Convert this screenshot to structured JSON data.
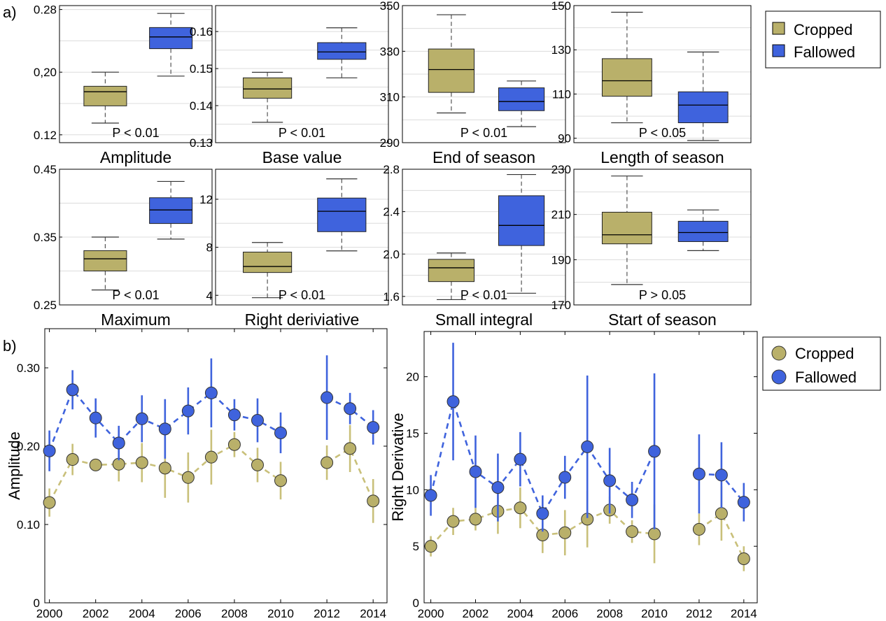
{
  "panel_labels": {
    "a": "a)",
    "b": "b)"
  },
  "colors": {
    "cropped": "#b9b06a",
    "fallowed": "#3f63dd",
    "cropped_line": "#c9c07a",
    "fallowed_line": "#3f63dd"
  },
  "legend": {
    "cropped": "Cropped",
    "fallowed": "Fallowed"
  },
  "chart_data": [
    {
      "type": "box",
      "xlabel": "Amplitude",
      "pvalue": "P < 0.01",
      "ylim": [
        0.11,
        0.285
      ],
      "yticks": [
        0.12,
        0.2,
        0.28
      ],
      "yticklabels": [
        "0.12",
        "0,20",
        "0.28"
      ],
      "series": [
        {
          "name": "Cropped",
          "whisker_low": 0.135,
          "q1": 0.157,
          "median": 0.175,
          "q3": 0.182,
          "whisker_high": 0.2
        },
        {
          "name": "Fallowed",
          "whisker_low": 0.195,
          "q1": 0.23,
          "median": 0.245,
          "q3": 0.257,
          "whisker_high": 0.275
        }
      ]
    },
    {
      "type": "box",
      "xlabel": "Base value",
      "pvalue": "P < 0.01",
      "ylim": [
        0.13,
        0.167
      ],
      "yticks": [
        0.13,
        0.14,
        0.15,
        0.16
      ],
      "yticklabels": [
        "0.13",
        "0.14",
        "0.15",
        "0.16"
      ],
      "series": [
        {
          "name": "Cropped",
          "whisker_low": 0.1355,
          "q1": 0.142,
          "median": 0.1445,
          "q3": 0.1475,
          "whisker_high": 0.149
        },
        {
          "name": "Fallowed",
          "whisker_low": 0.1475,
          "q1": 0.1525,
          "median": 0.1545,
          "q3": 0.157,
          "whisker_high": 0.161
        }
      ]
    },
    {
      "type": "box",
      "xlabel": "End of season",
      "pvalue": "P < 0.01",
      "ylim": [
        290,
        350
      ],
      "yticks": [
        290,
        310,
        330,
        350
      ],
      "yticklabels": [
        "290",
        "310",
        "330",
        "350"
      ],
      "series": [
        {
          "name": "Cropped",
          "whisker_low": 303,
          "q1": 312,
          "median": 322,
          "q3": 331,
          "whisker_high": 346
        },
        {
          "name": "Fallowed",
          "whisker_low": 297,
          "q1": 304,
          "median": 308,
          "q3": 314,
          "whisker_high": 317
        }
      ]
    },
    {
      "type": "box",
      "xlabel": "Length of season",
      "pvalue": "P < 0.05",
      "ylim": [
        88,
        150
      ],
      "yticks": [
        90,
        110,
        130,
        150
      ],
      "yticklabels": [
        "90",
        "110",
        "130",
        "150"
      ],
      "series": [
        {
          "name": "Cropped",
          "whisker_low": 97,
          "q1": 109,
          "median": 116,
          "q3": 126,
          "whisker_high": 147
        },
        {
          "name": "Fallowed",
          "whisker_low": 89,
          "q1": 97,
          "median": 105,
          "q3": 111,
          "whisker_high": 129
        }
      ]
    },
    {
      "type": "box",
      "xlabel": "Maximum",
      "pvalue": "P < 0.01",
      "ylim": [
        0.25,
        0.45
      ],
      "yticks": [
        0.25,
        0.35,
        0.45
      ],
      "yticklabels": [
        "0.25",
        "0.35",
        "0.45"
      ],
      "series": [
        {
          "name": "Cropped",
          "whisker_low": 0.272,
          "q1": 0.3,
          "median": 0.318,
          "q3": 0.33,
          "whisker_high": 0.35
        },
        {
          "name": "Fallowed",
          "whisker_low": 0.347,
          "q1": 0.37,
          "median": 0.39,
          "q3": 0.408,
          "whisker_high": 0.432
        }
      ]
    },
    {
      "type": "box",
      "xlabel": "Right deriviative",
      "pvalue": "P < 0.01",
      "ylim": [
        3.2,
        14.5
      ],
      "yticks": [
        4,
        8,
        12
      ],
      "yticklabels": [
        "4",
        "8",
        "12"
      ],
      "series": [
        {
          "name": "Cropped",
          "whisker_low": 3.8,
          "q1": 5.9,
          "median": 6.4,
          "q3": 7.6,
          "whisker_high": 8.4
        },
        {
          "name": "Fallowed",
          "whisker_low": 7.7,
          "q1": 9.3,
          "median": 11.0,
          "q3": 12.1,
          "whisker_high": 13.7
        }
      ]
    },
    {
      "type": "box",
      "xlabel": "Small integral",
      "pvalue": "P < 0.01",
      "ylim": [
        1.52,
        2.8
      ],
      "yticks": [
        1.6,
        2.0,
        2.4,
        2.8
      ],
      "yticklabels": [
        "1.6",
        "2.0",
        "2.4",
        "2.8"
      ],
      "series": [
        {
          "name": "Cropped",
          "whisker_low": 1.57,
          "q1": 1.74,
          "median": 1.87,
          "q3": 1.95,
          "whisker_high": 2.01
        },
        {
          "name": "Fallowed",
          "whisker_low": 1.63,
          "q1": 2.08,
          "median": 2.27,
          "q3": 2.55,
          "whisker_high": 2.75
        }
      ]
    },
    {
      "type": "box",
      "xlabel": "Start of season",
      "pvalue": "P > 0.05",
      "ylim": [
        170,
        230
      ],
      "yticks": [
        170,
        190,
        210,
        230
      ],
      "yticklabels": [
        "170",
        "190",
        "210",
        "230"
      ],
      "series": [
        {
          "name": "Cropped",
          "whisker_low": 179,
          "q1": 197,
          "median": 201,
          "q3": 211,
          "whisker_high": 227
        },
        {
          "name": "Fallowed",
          "whisker_low": 194,
          "q1": 198,
          "median": 202,
          "q3": 207,
          "whisker_high": 212
        }
      ]
    },
    {
      "type": "line",
      "ylabel": "Amplitude",
      "xlim": [
        1999.8,
        2014.6
      ],
      "ylim": [
        0,
        0.35
      ],
      "xticks": [
        2000,
        2002,
        2004,
        2006,
        2008,
        2010,
        2012,
        2014
      ],
      "yticks": [
        0,
        0.1,
        0.2,
        0.3
      ],
      "yticklabels": [
        "0",
        "0.10",
        "0.20",
        "0.30"
      ],
      "x": [
        2000,
        2001,
        2002,
        2003,
        2004,
        2005,
        2006,
        2007,
        2008,
        2009,
        2010,
        2012,
        2013,
        2014
      ],
      "series": [
        {
          "name": "Cropped",
          "values": [
            0.128,
            0.183,
            0.176,
            0.177,
            0.179,
            0.172,
            0.16,
            0.186,
            0.202,
            0.176,
            0.156,
            0.179,
            0.197,
            0.13
          ],
          "err": [
            0.018,
            0.02,
            0.008,
            0.022,
            0.025,
            0.038,
            0.032,
            0.035,
            0.016,
            0.022,
            0.024,
            0.022,
            0.03,
            0.028
          ]
        },
        {
          "name": "Fallowed",
          "values": [
            0.194,
            0.272,
            0.236,
            0.204,
            0.235,
            0.222,
            0.245,
            0.268,
            0.24,
            0.233,
            0.217,
            0.262,
            0.248,
            0.224
          ],
          "err": [
            0.026,
            0.025,
            0.025,
            0.022,
            0.03,
            0.038,
            0.03,
            0.044,
            0.02,
            0.028,
            0.026,
            0.054,
            0.02,
            0.022
          ]
        }
      ]
    },
    {
      "type": "line",
      "ylabel": "Right Derivative",
      "xlim": [
        1999.7,
        2014.6
      ],
      "ylim": [
        0,
        24
      ],
      "xticks": [
        2000,
        2002,
        2004,
        2006,
        2008,
        2010,
        2012,
        2014
      ],
      "yticks": [
        0,
        5,
        10,
        15,
        20
      ],
      "yticklabels": [
        "0",
        "5",
        "10",
        "15",
        "20"
      ],
      "x": [
        2000,
        2001,
        2002,
        2003,
        2004,
        2005,
        2006,
        2007,
        2008,
        2009,
        2010,
        2012,
        2013,
        2014
      ],
      "series": [
        {
          "name": "Cropped",
          "values": [
            5.0,
            7.2,
            7.4,
            8.1,
            8.4,
            6.0,
            6.2,
            7.4,
            8.2,
            6.3,
            6.1,
            6.5,
            7.9,
            3.9
          ],
          "err": [
            0.9,
            1.2,
            1.0,
            2.0,
            1.8,
            1.6,
            2.0,
            2.5,
            1.2,
            1.0,
            2.6,
            1.4,
            2.4,
            1.1
          ]
        },
        {
          "name": "Fallowed",
          "values": [
            9.5,
            17.8,
            11.6,
            10.2,
            12.7,
            7.9,
            11.1,
            13.8,
            10.8,
            9.1,
            13.4,
            11.4,
            11.3,
            8.9
          ],
          "err": [
            1.8,
            5.2,
            3.2,
            3.0,
            2.4,
            1.6,
            1.9,
            6.3,
            2.9,
            1.6,
            6.9,
            3.5,
            2.9,
            1.7
          ]
        }
      ]
    }
  ]
}
